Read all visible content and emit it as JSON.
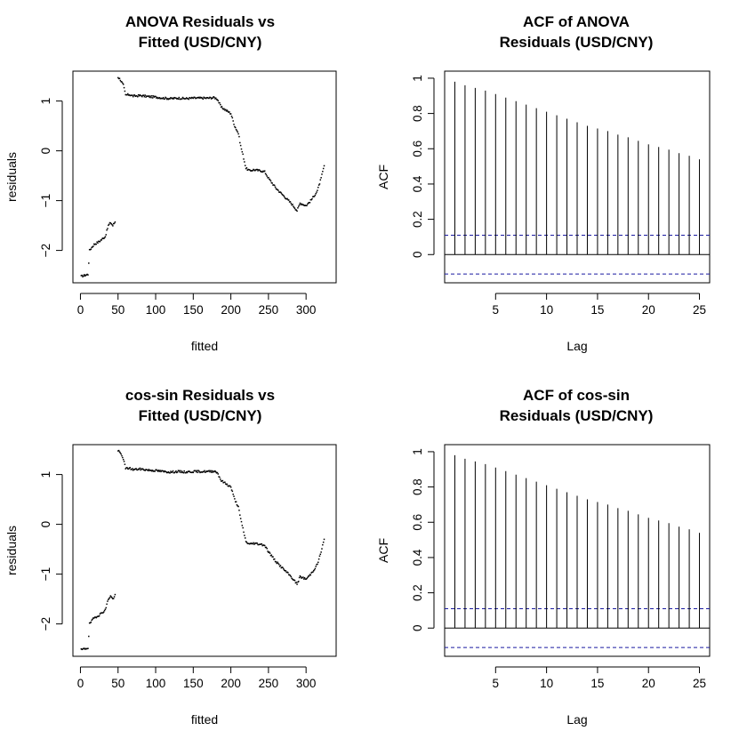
{
  "chart_data": [
    {
      "id": "anova-resid",
      "type": "scatter",
      "title_lines": [
        "ANOVA Residuals vs",
        "Fitted (USD/CNY)"
      ],
      "xlabel": "fitted",
      "ylabel": "residuals",
      "xlim": [
        -10,
        340
      ],
      "ylim": [
        -2.65,
        1.6
      ],
      "xticks": [
        0,
        50,
        100,
        150,
        200,
        250,
        300
      ],
      "yticks": [
        -2,
        -1,
        0,
        1
      ],
      "grid": false,
      "point_color": "#000000",
      "trajectory": [
        [
          1,
          -2.52
        ],
        [
          10,
          -2.48
        ],
        [
          12,
          -2.0
        ],
        [
          18,
          -1.88
        ],
        [
          25,
          -1.82
        ],
        [
          33,
          -1.72
        ],
        [
          37,
          -1.5
        ],
        [
          40,
          -1.44
        ],
        [
          43,
          -1.5
        ],
        [
          47,
          -1.4
        ],
        [
          50,
          1.48
        ],
        [
          53,
          1.43
        ],
        [
          57,
          1.32
        ],
        [
          60,
          1.12
        ],
        [
          65,
          1.13
        ],
        [
          70,
          1.1
        ],
        [
          80,
          1.11
        ],
        [
          90,
          1.09
        ],
        [
          100,
          1.08
        ],
        [
          110,
          1.06
        ],
        [
          120,
          1.05
        ],
        [
          130,
          1.06
        ],
        [
          140,
          1.05
        ],
        [
          150,
          1.06
        ],
        [
          160,
          1.06
        ],
        [
          170,
          1.06
        ],
        [
          178,
          1.07
        ],
        [
          182,
          1.04
        ],
        [
          187,
          0.88
        ],
        [
          193,
          0.82
        ],
        [
          200,
          0.75
        ],
        [
          205,
          0.5
        ],
        [
          210,
          0.35
        ],
        [
          213,
          0.1
        ],
        [
          216,
          -0.08
        ],
        [
          220,
          -0.35
        ],
        [
          225,
          -0.4
        ],
        [
          230,
          -0.38
        ],
        [
          240,
          -0.4
        ],
        [
          245,
          -0.42
        ],
        [
          250,
          -0.55
        ],
        [
          260,
          -0.75
        ],
        [
          270,
          -0.9
        ],
        [
          280,
          -1.05
        ],
        [
          288,
          -1.2
        ],
        [
          292,
          -1.05
        ],
        [
          300,
          -1.1
        ],
        [
          305,
          -1.02
        ],
        [
          310,
          -0.92
        ],
        [
          315,
          -0.8
        ],
        [
          320,
          -0.55
        ],
        [
          324,
          -0.3
        ]
      ]
    },
    {
      "id": "anova-acf",
      "type": "bar",
      "title_lines": [
        "ACF of ANOVA",
        "Residuals (USD/CNY)"
      ],
      "xlabel": "Lag",
      "ylabel": "ACF",
      "xlim": [
        0,
        26
      ],
      "ylim": [
        -0.16,
        1.04
      ],
      "xticks": [
        5,
        10,
        15,
        20,
        25
      ],
      "yticks": [
        0.0,
        0.2,
        0.4,
        0.6,
        0.8,
        1.0
      ],
      "grid": false,
      "lags": [
        1,
        2,
        3,
        4,
        5,
        6,
        7,
        8,
        9,
        10,
        11,
        12,
        13,
        14,
        15,
        16,
        17,
        18,
        19,
        20,
        21,
        22,
        23,
        24,
        25
      ],
      "values": [
        0.98,
        0.96,
        0.945,
        0.93,
        0.91,
        0.89,
        0.87,
        0.85,
        0.83,
        0.81,
        0.79,
        0.77,
        0.75,
        0.73,
        0.715,
        0.7,
        0.68,
        0.665,
        0.645,
        0.625,
        0.61,
        0.595,
        0.575,
        0.56,
        0.54
      ],
      "confidence_bound": 0.11,
      "ci_color": "#1a1aa0"
    },
    {
      "id": "cossin-resid",
      "type": "scatter",
      "title_lines": [
        "cos-sin Residuals vs",
        "Fitted (USD/CNY)"
      ],
      "xlabel": "fitted",
      "ylabel": "residuals",
      "xlim": [
        -10,
        340
      ],
      "ylim": [
        -2.65,
        1.6
      ],
      "xticks": [
        0,
        50,
        100,
        150,
        200,
        250,
        300
      ],
      "yticks": [
        -2,
        -1,
        0,
        1
      ],
      "grid": false,
      "point_color": "#000000",
      "trajectory": [
        [
          1,
          -2.52
        ],
        [
          10,
          -2.48
        ],
        [
          12,
          -2.0
        ],
        [
          18,
          -1.88
        ],
        [
          25,
          -1.82
        ],
        [
          33,
          -1.72
        ],
        [
          37,
          -1.5
        ],
        [
          40,
          -1.44
        ],
        [
          43,
          -1.5
        ],
        [
          47,
          -1.4
        ],
        [
          50,
          1.48
        ],
        [
          53,
          1.43
        ],
        [
          57,
          1.32
        ],
        [
          60,
          1.12
        ],
        [
          65,
          1.13
        ],
        [
          70,
          1.1
        ],
        [
          80,
          1.11
        ],
        [
          90,
          1.09
        ],
        [
          100,
          1.08
        ],
        [
          110,
          1.06
        ],
        [
          120,
          1.05
        ],
        [
          130,
          1.06
        ],
        [
          140,
          1.05
        ],
        [
          150,
          1.06
        ],
        [
          160,
          1.06
        ],
        [
          170,
          1.06
        ],
        [
          178,
          1.07
        ],
        [
          182,
          1.04
        ],
        [
          187,
          0.88
        ],
        [
          193,
          0.82
        ],
        [
          200,
          0.75
        ],
        [
          205,
          0.5
        ],
        [
          210,
          0.35
        ],
        [
          213,
          0.1
        ],
        [
          216,
          -0.08
        ],
        [
          220,
          -0.35
        ],
        [
          225,
          -0.4
        ],
        [
          230,
          -0.38
        ],
        [
          240,
          -0.4
        ],
        [
          245,
          -0.42
        ],
        [
          250,
          -0.55
        ],
        [
          260,
          -0.75
        ],
        [
          270,
          -0.9
        ],
        [
          280,
          -1.05
        ],
        [
          288,
          -1.2
        ],
        [
          292,
          -1.05
        ],
        [
          300,
          -1.1
        ],
        [
          305,
          -1.02
        ],
        [
          310,
          -0.92
        ],
        [
          315,
          -0.8
        ],
        [
          320,
          -0.55
        ],
        [
          324,
          -0.3
        ]
      ]
    },
    {
      "id": "cossin-acf",
      "type": "bar",
      "title_lines": [
        "ACF of cos-sin",
        "Residuals (USD/CNY)"
      ],
      "xlabel": "Lag",
      "ylabel": "ACF",
      "xlim": [
        0,
        26
      ],
      "ylim": [
        -0.16,
        1.04
      ],
      "xticks": [
        5,
        10,
        15,
        20,
        25
      ],
      "yticks": [
        0.0,
        0.2,
        0.4,
        0.6,
        0.8,
        1.0
      ],
      "grid": false,
      "lags": [
        1,
        2,
        3,
        4,
        5,
        6,
        7,
        8,
        9,
        10,
        11,
        12,
        13,
        14,
        15,
        16,
        17,
        18,
        19,
        20,
        21,
        22,
        23,
        24,
        25
      ],
      "values": [
        0.98,
        0.96,
        0.945,
        0.93,
        0.91,
        0.89,
        0.87,
        0.85,
        0.83,
        0.81,
        0.79,
        0.77,
        0.75,
        0.73,
        0.715,
        0.7,
        0.68,
        0.665,
        0.645,
        0.625,
        0.61,
        0.595,
        0.575,
        0.56,
        0.54
      ],
      "confidence_bound": 0.11,
      "ci_color": "#1a1aa0"
    }
  ]
}
